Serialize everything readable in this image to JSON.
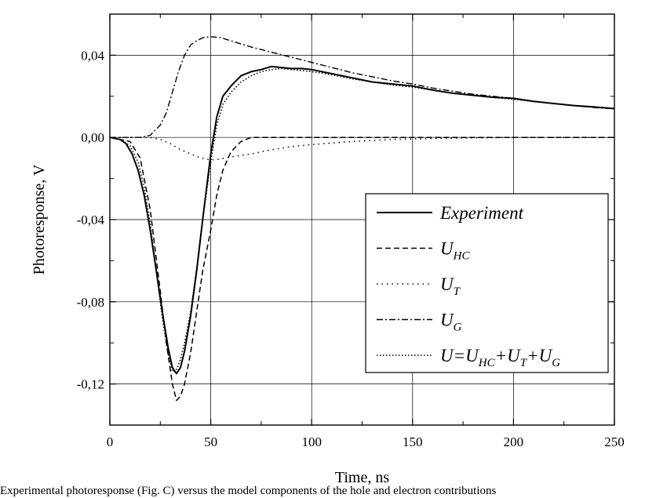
{
  "chart_data": {
    "type": "line",
    "title": "",
    "xlabel": "Time, ns",
    "ylabel": "Photoresponse, V",
    "xlim": [
      0,
      250
    ],
    "ylim": [
      -0.14,
      0.06
    ],
    "x_ticks": [
      0,
      50,
      100,
      150,
      200,
      250
    ],
    "x_tick_labels": [
      "0",
      "50",
      "100",
      "150",
      "200",
      "250"
    ],
    "y_ticks": [
      -0.12,
      -0.08,
      -0.04,
      0.0,
      0.04
    ],
    "y_tick_labels": [
      "-0,12",
      "-0,08",
      "-0,04",
      "0,00",
      "0,04"
    ],
    "grid": true,
    "legend_position": "lower-right",
    "series": [
      {
        "key": "experiment",
        "name": "Experiment",
        "style": "solid",
        "x": [
          0,
          5,
          8,
          11,
          14,
          17,
          20,
          23,
          26,
          29,
          31,
          33,
          35,
          37,
          40,
          43,
          46,
          50,
          53,
          56,
          60,
          65,
          70,
          75,
          80,
          85,
          90,
          95,
          100,
          110,
          120,
          130,
          140,
          150,
          160,
          170,
          180,
          190,
          200,
          210,
          220,
          230,
          240,
          250
        ],
        "y": [
          0,
          -0.001,
          -0.003,
          -0.008,
          -0.016,
          -0.028,
          -0.045,
          -0.065,
          -0.085,
          -0.103,
          -0.112,
          -0.115,
          -0.112,
          -0.104,
          -0.087,
          -0.065,
          -0.04,
          -0.008,
          0.01,
          0.02,
          0.025,
          0.03,
          0.032,
          0.033,
          0.0345,
          0.034,
          0.0335,
          0.0335,
          0.033,
          0.031,
          0.029,
          0.027,
          0.026,
          0.025,
          0.023,
          0.0215,
          0.0205,
          0.0195,
          0.019,
          0.0175,
          0.0165,
          0.0155,
          0.0148,
          0.014
        ]
      },
      {
        "key": "u_hc",
        "name": "U",
        "name_sub": "HC",
        "style": "dash",
        "x": [
          0,
          10,
          15,
          20,
          25,
          28,
          31,
          33,
          35,
          37,
          40,
          43,
          46,
          50,
          53,
          56,
          60,
          65,
          70,
          80,
          100,
          150,
          200,
          250
        ],
        "y": [
          0,
          -0.002,
          -0.01,
          -0.035,
          -0.075,
          -0.1,
          -0.12,
          -0.128,
          -0.126,
          -0.12,
          -0.105,
          -0.085,
          -0.065,
          -0.045,
          -0.028,
          -0.016,
          -0.007,
          -0.002,
          0,
          0,
          0,
          0,
          0,
          0
        ]
      },
      {
        "key": "u_t",
        "name": "U",
        "name_sub": "T",
        "style": "dot",
        "x": [
          0,
          10,
          20,
          25,
          30,
          35,
          40,
          45,
          50,
          55,
          60,
          70,
          80,
          90,
          100,
          120,
          140,
          160,
          200,
          250
        ],
        "y": [
          0,
          0,
          0,
          -0.001,
          -0.003,
          -0.006,
          -0.008,
          -0.01,
          -0.011,
          -0.0105,
          -0.0095,
          -0.008,
          -0.006,
          -0.0045,
          -0.0035,
          -0.002,
          -0.001,
          -0.0005,
          0,
          0
        ]
      },
      {
        "key": "u_g",
        "name": "U",
        "name_sub": "G",
        "style": "dashdot",
        "x": [
          0,
          10,
          15,
          20,
          22,
          25,
          28,
          31,
          34,
          37,
          40,
          43,
          46,
          50,
          55,
          60,
          70,
          80,
          90,
          100,
          110,
          120,
          130,
          140,
          150,
          160,
          170,
          180,
          190,
          200,
          210,
          220,
          230,
          240,
          250
        ],
        "y": [
          0,
          0,
          0,
          0.001,
          0.003,
          0.006,
          0.012,
          0.022,
          0.032,
          0.04,
          0.045,
          0.047,
          0.0485,
          0.049,
          0.0485,
          0.047,
          0.044,
          0.0415,
          0.039,
          0.0365,
          0.034,
          0.0315,
          0.0295,
          0.0275,
          0.026,
          0.024,
          0.0225,
          0.021,
          0.02,
          0.019,
          0.0175,
          0.0165,
          0.0155,
          0.0145,
          0.014
        ]
      },
      {
        "key": "u_sum",
        "name": "U=U",
        "name_full": "U=UHC+UT+UG",
        "style": "fine-dot",
        "x": [
          0,
          5,
          10,
          14,
          17,
          20,
          23,
          26,
          29,
          31,
          33,
          35,
          37,
          40,
          43,
          46,
          50,
          53,
          56,
          60,
          65,
          70,
          75,
          80,
          85,
          90,
          95,
          100,
          110,
          120,
          130,
          140,
          150,
          160,
          170,
          180,
          190,
          200,
          210,
          220,
          230,
          240,
          250
        ],
        "y": [
          0,
          -0.001,
          -0.004,
          -0.012,
          -0.024,
          -0.042,
          -0.065,
          -0.088,
          -0.106,
          -0.114,
          -0.113,
          -0.108,
          -0.1,
          -0.085,
          -0.064,
          -0.04,
          -0.012,
          0.006,
          0.016,
          0.022,
          0.027,
          0.03,
          0.032,
          0.033,
          0.0335,
          0.033,
          0.0325,
          0.032,
          0.0305,
          0.0285,
          0.027,
          0.0255,
          0.0245,
          0.023,
          0.0215,
          0.0205,
          0.0195,
          0.0185,
          0.0175,
          0.0165,
          0.0155,
          0.0147,
          0.014
        ]
      }
    ],
    "legend": [
      {
        "series": "experiment",
        "text": "Experiment",
        "sub": ""
      },
      {
        "series": "u_hc",
        "text": "U",
        "sub": "HC"
      },
      {
        "series": "u_t",
        "text": "U",
        "sub": "T"
      },
      {
        "series": "u_g",
        "text": "U",
        "sub": "G"
      },
      {
        "series": "u_sum",
        "text": "U=U",
        "sub": "HC",
        "parts": [
          {
            "t": "U=U",
            "s": "HC"
          },
          {
            "t": "+U",
            "s": "T"
          },
          {
            "t": "+U",
            "s": "G"
          }
        ]
      }
    ]
  },
  "caption": "Experimental photoresponse (Fig. C) versus the model components of the hole and electron contributions"
}
